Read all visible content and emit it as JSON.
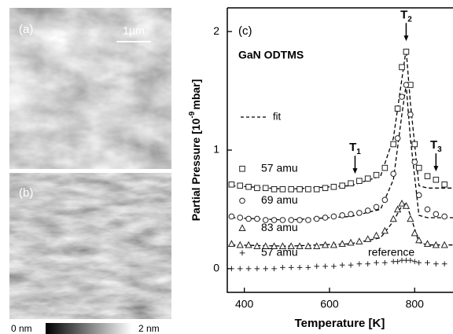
{
  "afm": {
    "panel_a": "(a)",
    "scale_bar": "1µm",
    "panel_b": "(b)",
    "colorbar_min": "0 nm",
    "colorbar_max": "2 nm"
  },
  "chart_data": {
    "type": "scatter",
    "panel": "(c)",
    "title": "GaN ODTMS",
    "x_label": "Temperature [K]",
    "y_label": [
      "Partial Pressure [10",
      "-9",
      "mbar]"
    ],
    "xlim": [
      360,
      890
    ],
    "xticks": [
      400,
      600,
      800
    ],
    "ylim": [
      -0.2,
      2.2
    ],
    "yticks": [
      0,
      1,
      2
    ],
    "x": [
      370,
      390,
      410,
      430,
      450,
      470,
      490,
      510,
      530,
      550,
      570,
      590,
      610,
      630,
      650,
      670,
      690,
      710,
      730,
      750,
      760,
      770,
      780,
      790,
      800,
      810,
      830,
      850,
      870,
      890
    ],
    "series": [
      {
        "name": "57 amu",
        "marker": "square",
        "color": "#222222",
        "values": [
          0.71,
          0.7,
          0.69,
          0.68,
          0.68,
          0.67,
          0.67,
          0.67,
          0.67,
          0.67,
          0.67,
          0.68,
          0.69,
          0.7,
          0.72,
          0.74,
          0.76,
          0.79,
          0.85,
          1.05,
          1.35,
          1.7,
          1.83,
          1.55,
          1.05,
          0.85,
          0.78,
          0.75,
          0.71,
          0.68
        ]
      },
      {
        "name": "69 amu",
        "marker": "circle",
        "color": "#222222",
        "values": [
          0.44,
          0.43,
          0.42,
          0.42,
          0.41,
          0.41,
          0.41,
          0.41,
          0.41,
          0.41,
          0.42,
          0.43,
          0.44,
          0.45,
          0.46,
          0.47,
          0.49,
          0.52,
          0.58,
          0.8,
          1.1,
          1.45,
          1.55,
          1.3,
          0.9,
          0.62,
          0.5,
          0.46,
          0.44,
          0.43
        ]
      },
      {
        "name": "83 amu",
        "marker": "triangle",
        "color": "#222222",
        "values": [
          0.21,
          0.2,
          0.2,
          0.19,
          0.19,
          0.19,
          0.19,
          0.19,
          0.19,
          0.19,
          0.19,
          0.2,
          0.2,
          0.21,
          0.22,
          0.23,
          0.25,
          0.28,
          0.32,
          0.42,
          0.5,
          0.55,
          0.53,
          0.42,
          0.3,
          0.24,
          0.21,
          0.2,
          0.2,
          0.19
        ]
      },
      {
        "name": "57 amu",
        "label": "reference",
        "marker": "plus",
        "color": "#222222",
        "values": [
          0.0,
          0.0,
          0.0,
          0.0,
          0.0,
          0.0,
          0.01,
          0.01,
          0.01,
          0.01,
          0.02,
          0.02,
          0.02,
          0.03,
          0.03,
          0.04,
          0.04,
          0.05,
          0.05,
          0.06,
          0.06,
          0.07,
          0.07,
          0.07,
          0.06,
          0.05,
          0.05,
          0.04,
          0.04,
          0.04
        ]
      }
    ],
    "fit": {
      "name": "fit",
      "x": [
        370,
        500,
        650,
        720,
        750,
        770,
        780,
        790,
        810,
        830,
        890
      ],
      "curves": [
        [
          0.7,
          0.67,
          0.7,
          0.78,
          1.1,
          1.6,
          1.85,
          1.4,
          0.7,
          0.68,
          0.68
        ],
        [
          0.43,
          0.41,
          0.44,
          0.5,
          0.75,
          1.3,
          1.55,
          1.1,
          0.45,
          0.43,
          0.43
        ],
        [
          0.2,
          0.19,
          0.21,
          0.26,
          0.4,
          0.53,
          0.55,
          0.45,
          0.22,
          0.2,
          0.2
        ]
      ]
    },
    "annotations": [
      {
        "label": "T",
        "sub": "1",
        "x": 660,
        "y": 0.78
      },
      {
        "label": "T",
        "sub": "2",
        "x": 780,
        "y": 1.9
      },
      {
        "label": "T",
        "sub": "3",
        "x": 850,
        "y": 0.8
      }
    ]
  }
}
